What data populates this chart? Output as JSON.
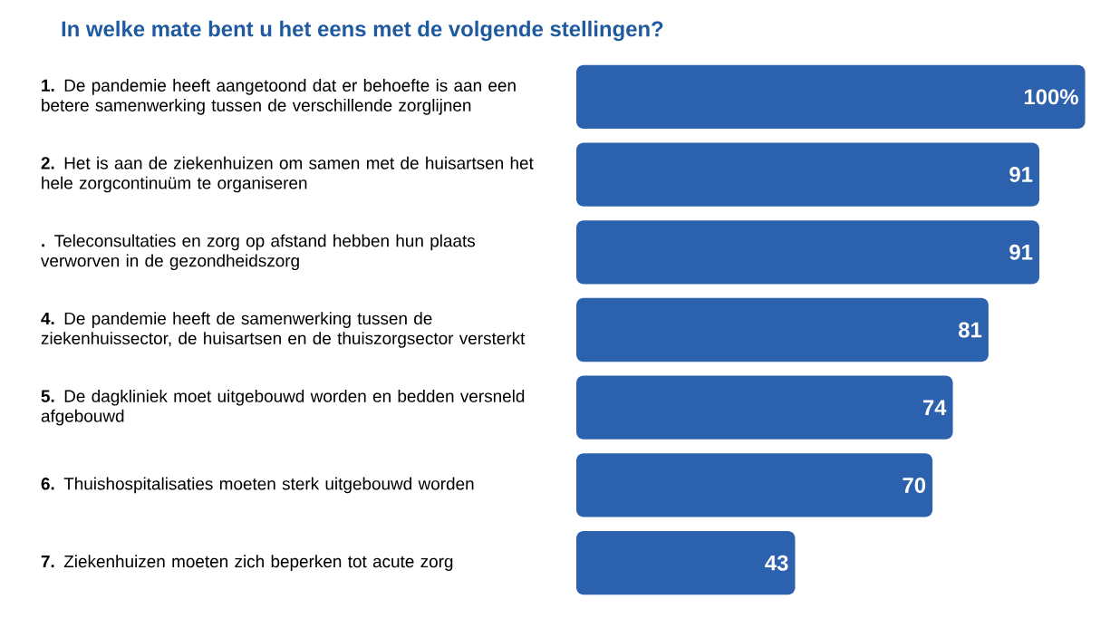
{
  "chart_data": {
    "type": "bar",
    "orientation": "horizontal",
    "title": "In welke mate bent u het eens met de volgende stellingen?",
    "categories": [
      "**1.** De pandemie heeft aangetoond dat er behoefte is aan een betere samenwerking tussen de verschillende zorglijnen",
      "**2.** Het is aan de ziekenhuizen om samen met de huisartsen het hele zorgcontinuüm te organiseren",
      "**.** Teleconsultaties en zorg op afstand hebben hun plaats verworven in de gezondheidszorg",
      "**4.** De pandemie heeft de samenwerking tussen de ziekenhuissector, de huisartsen en de thuiszorgsector versterkt",
      "**5.** De dagkliniek moet uitgebouwd worden en bedden versneld afgebouwd",
      "**6.** Thuishospitalisaties moeten sterk uitgebouwd worden",
      "**7.** Ziekenhuizen moeten zich beperken tot acute zorg"
    ],
    "values": [
      100,
      91,
      91,
      81,
      74,
      70,
      43
    ],
    "value_labels": [
      "100%",
      "91",
      "91",
      "81",
      "74",
      "70",
      "43"
    ],
    "color": "#2c62ad"
  }
}
